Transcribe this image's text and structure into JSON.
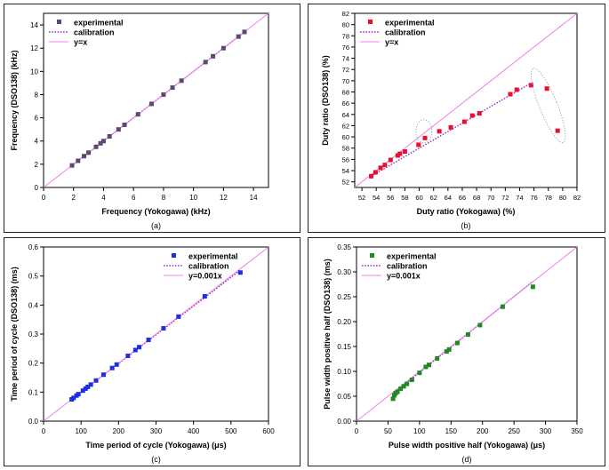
{
  "chart_data": [
    {
      "type": "scatter",
      "panel_label": "(a)",
      "xlabel": "Frequency (Yokogawa) (kHz)",
      "ylabel": "Frequency (DSO138) (kHz)",
      "xlim": [
        0,
        15
      ],
      "ylim": [
        0,
        15
      ],
      "xticks": [
        0,
        2,
        4,
        6,
        8,
        10,
        12,
        14
      ],
      "yticks": [
        0,
        2,
        4,
        6,
        8,
        10,
        12,
        14
      ],
      "grid": false,
      "legend_position": "top-left",
      "series": [
        {
          "name": "experimental",
          "kind": "points",
          "color": "#5a4a6e",
          "x": [
            1.9,
            2.3,
            2.7,
            3.0,
            3.5,
            3.8,
            4.0,
            4.4,
            5.0,
            5.4,
            6.3,
            7.2,
            8.0,
            8.6,
            9.2,
            10.8,
            11.3,
            12.0,
            13.0,
            13.4
          ],
          "y": [
            1.9,
            2.3,
            2.7,
            3.0,
            3.5,
            3.8,
            4.0,
            4.4,
            5.0,
            5.4,
            6.3,
            7.2,
            8.0,
            8.6,
            9.2,
            10.8,
            11.3,
            12.0,
            13.0,
            13.4
          ]
        },
        {
          "name": "calibration",
          "kind": "dotted",
          "color": "#9b30c8",
          "x": [
            1.9,
            13.4
          ],
          "y": [
            1.9,
            13.4
          ]
        },
        {
          "name": "y=x",
          "kind": "line",
          "color": "#f080e8",
          "x": [
            0,
            15
          ],
          "y": [
            0,
            15
          ]
        }
      ]
    },
    {
      "type": "scatter",
      "panel_label": "(b)",
      "xlabel": "Duty ratio (Yokogawa) (%)",
      "ylabel": "Duty ratio (DSO138) (%)",
      "xlim": [
        51,
        82
      ],
      "ylim": [
        51,
        82
      ],
      "xticks": [
        52,
        54,
        56,
        58,
        60,
        62,
        64,
        66,
        68,
        70,
        72,
        74,
        76,
        78,
        80,
        82
      ],
      "yticks": [
        52,
        54,
        56,
        58,
        60,
        62,
        64,
        66,
        68,
        70,
        72,
        74,
        76,
        78,
        80,
        82
      ],
      "grid": false,
      "legend_position": "top-left",
      "series": [
        {
          "name": "experimental",
          "kind": "points",
          "color": "#e8102a",
          "x": [
            53.3,
            53.9,
            54.6,
            55.2,
            56.0,
            57.0,
            57.3,
            58.0,
            59.9,
            60.8,
            62.8,
            64.4,
            66.3,
            67.4,
            68.4,
            72.7,
            73.6,
            75.6,
            77.8,
            79.3
          ],
          "y": [
            53.0,
            53.7,
            54.5,
            55.0,
            55.9,
            56.7,
            57.0,
            57.4,
            58.6,
            59.8,
            61.0,
            61.7,
            62.7,
            63.8,
            64.2,
            67.6,
            68.4,
            69.2,
            68.6,
            61.1
          ]
        },
        {
          "name": "calibration",
          "kind": "dotted",
          "color": "#9b30c8",
          "x": [
            53.3,
            75.6
          ],
          "y": [
            53.0,
            69.6
          ]
        },
        {
          "name": "y=x",
          "kind": "line",
          "color": "#f080e8",
          "x": [
            51,
            82
          ],
          "y": [
            51,
            82
          ]
        }
      ]
    },
    {
      "type": "scatter",
      "panel_label": "(c)",
      "xlabel": "Time period of cycle (Yokogawa) (μs)",
      "ylabel": "Time period of cycle (DSO138) (ms)",
      "xlim": [
        0,
        600
      ],
      "ylim": [
        0,
        0.6
      ],
      "xticks": [
        0,
        100,
        200,
        300,
        400,
        500,
        600
      ],
      "yticks": [
        0.0,
        0.1,
        0.2,
        0.3,
        0.4,
        0.5,
        0.6
      ],
      "grid": false,
      "legend_position": "top-right",
      "series": [
        {
          "name": "experimental",
          "kind": "points",
          "color": "#1f2fe0",
          "x": [
            75,
            80,
            88,
            93,
            105,
            112,
            118,
            126,
            140,
            160,
            183,
            195,
            225,
            245,
            255,
            280,
            320,
            360,
            430,
            525
          ],
          "y": [
            0.075,
            0.08,
            0.088,
            0.093,
            0.105,
            0.112,
            0.118,
            0.126,
            0.14,
            0.16,
            0.183,
            0.195,
            0.225,
            0.245,
            0.255,
            0.28,
            0.32,
            0.36,
            0.43,
            0.512
          ]
        },
        {
          "name": "calibration",
          "kind": "dotted",
          "color": "#9b30c8",
          "x": [
            75,
            525
          ],
          "y": [
            0.075,
            0.52
          ]
        },
        {
          "name": "y=0.001x",
          "kind": "line",
          "color": "#f080e8",
          "x": [
            0,
            600
          ],
          "y": [
            0,
            0.6
          ]
        }
      ]
    },
    {
      "type": "scatter",
      "panel_label": "(d)",
      "xlabel": "Pulse width positive half (Yokogawa) (μs)",
      "ylabel": "Pulse width positive half (DSO138) (ms)",
      "xlim": [
        0,
        350
      ],
      "ylim": [
        0,
        0.35
      ],
      "xticks": [
        0,
        50,
        100,
        150,
        200,
        250,
        300,
        350
      ],
      "yticks": [
        0.0,
        0.05,
        0.1,
        0.15,
        0.2,
        0.25,
        0.3,
        0.35
      ],
      "grid": false,
      "legend_position": "top-left",
      "series": [
        {
          "name": "experimental",
          "kind": "points",
          "color": "#1f8a1f",
          "x": [
            58,
            60,
            62,
            65,
            70,
            75,
            80,
            88,
            100,
            110,
            115,
            128,
            143,
            147,
            160,
            177,
            196,
            232,
            280
          ],
          "y": [
            0.045,
            0.052,
            0.056,
            0.059,
            0.065,
            0.07,
            0.075,
            0.083,
            0.097,
            0.109,
            0.113,
            0.126,
            0.14,
            0.144,
            0.157,
            0.174,
            0.193,
            0.23,
            0.27
          ]
        },
        {
          "name": "calibration",
          "kind": "dotted",
          "color": "#9b30c8",
          "x": [
            58,
            280
          ],
          "y": [
            0.055,
            0.281
          ]
        },
        {
          "name": "y=0.001x",
          "kind": "line",
          "color": "#f080e8",
          "x": [
            0,
            350
          ],
          "y": [
            0,
            0.35
          ]
        }
      ]
    }
  ]
}
